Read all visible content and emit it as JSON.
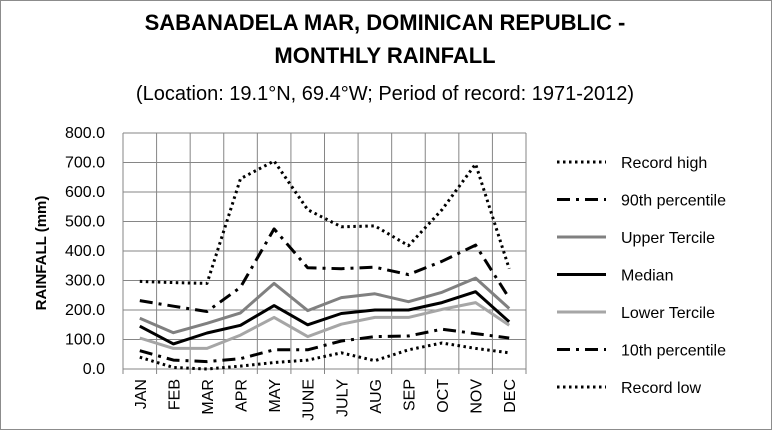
{
  "chart_data": {
    "type": "line",
    "title_line1": "SABANADELA MAR, DOMINICAN REPUBLIC -",
    "title_line2": "MONTHLY RAINFALL",
    "subtitle": "(Location: 19.1°N, 69.4°W; Period of record: 1971-2012)",
    "ylabel": "RAINFALL (mm)",
    "xlabel": "",
    "ylim": [
      0,
      800
    ],
    "yticks": [
      "0.0",
      "100.0",
      "200.0",
      "300.0",
      "400.0",
      "500.0",
      "600.0",
      "700.0",
      "800.0"
    ],
    "grid": "horizontal major gridlines and vertical category gridlines",
    "legend_position": "right",
    "categories": [
      "JAN",
      "FEB",
      "MAR",
      "APR",
      "MAY",
      "JUNE",
      "JULY",
      "AUG",
      "SEP",
      "OCT",
      "NOV",
      "DEC"
    ],
    "series": [
      {
        "name": "Record high",
        "color": "#000000",
        "style": "dotted",
        "values": [
          297,
          293,
          290,
          645,
          705,
          540,
          482,
          485,
          418,
          540,
          695,
          340
        ]
      },
      {
        "name": "90th percentile",
        "color": "#000000",
        "style": "dash-dot",
        "values": [
          232,
          213,
          195,
          277,
          475,
          343,
          340,
          345,
          320,
          365,
          420,
          240
        ]
      },
      {
        "name": "Upper Tercile",
        "color": "#808080",
        "style": "solid",
        "values": [
          172,
          123,
          155,
          190,
          290,
          198,
          242,
          255,
          228,
          260,
          308,
          205
        ]
      },
      {
        "name": "Median",
        "color": "#000000",
        "style": "solid",
        "values": [
          145,
          85,
          122,
          148,
          215,
          150,
          188,
          200,
          200,
          225,
          262,
          160
        ]
      },
      {
        "name": "Lower Tercile",
        "color": "#a6a6a6",
        "style": "solid",
        "values": [
          105,
          70,
          70,
          115,
          175,
          110,
          152,
          175,
          175,
          202,
          225,
          148
        ]
      },
      {
        "name": "10th percentile",
        "color": "#000000",
        "style": "dash-dot",
        "values": [
          62,
          30,
          25,
          35,
          65,
          65,
          95,
          110,
          112,
          135,
          120,
          105
        ]
      },
      {
        "name": "Record low",
        "color": "#000000",
        "style": "dotted",
        "values": [
          40,
          5,
          0,
          10,
          22,
          30,
          55,
          28,
          65,
          88,
          70,
          55
        ]
      }
    ]
  }
}
